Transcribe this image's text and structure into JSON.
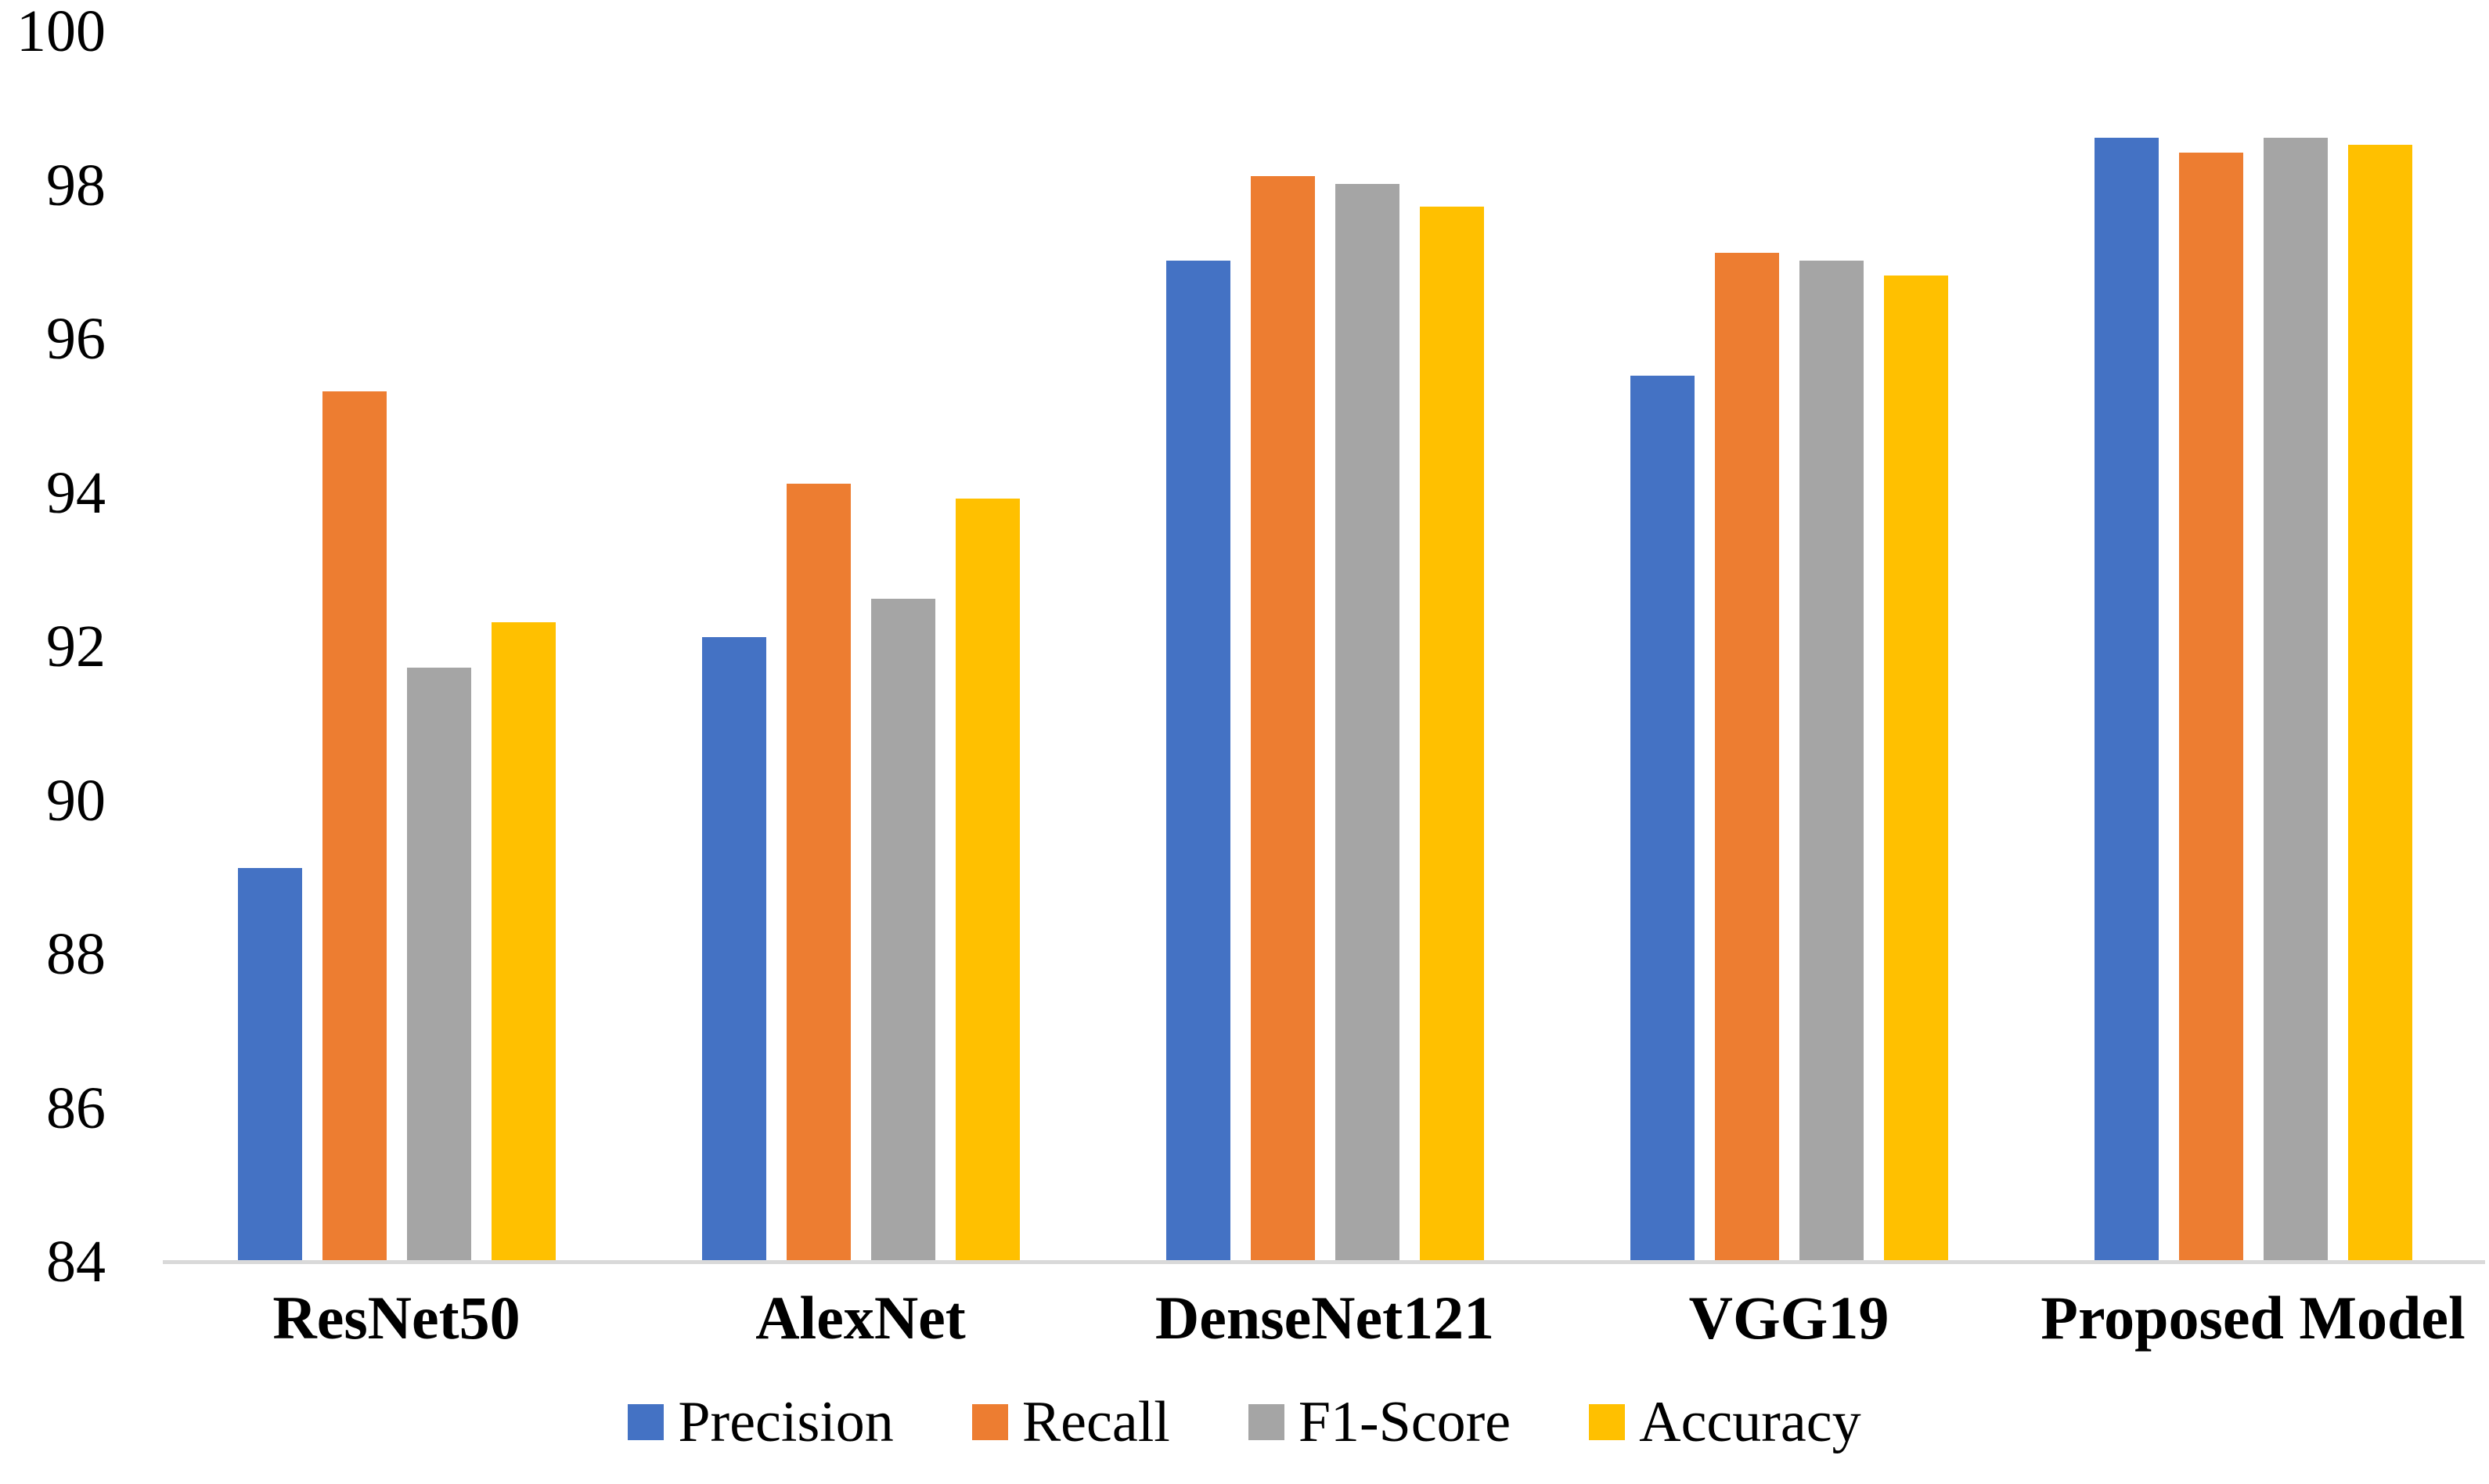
{
  "chart_data": {
    "type": "bar",
    "title": "",
    "xlabel": "",
    "ylabel": "",
    "categories": [
      "ResNet50",
      "AlexNet",
      "DenseNet121",
      "VGG19",
      "Proposed Model"
    ],
    "series": [
      {
        "name": "Precision",
        "color": "#4472C4",
        "values": [
          89.1,
          92.1,
          97.0,
          95.5,
          98.6
        ]
      },
      {
        "name": "Recall",
        "color": "#ED7D31",
        "values": [
          95.3,
          94.1,
          98.1,
          97.1,
          98.4
        ]
      },
      {
        "name": "F1-Score",
        "color": "#A5A5A5",
        "values": [
          91.7,
          92.6,
          98.0,
          97.0,
          98.6
        ]
      },
      {
        "name": "Accuracy",
        "color": "#FFC000",
        "values": [
          92.3,
          93.9,
          97.7,
          96.8,
          98.5
        ]
      }
    ],
    "ylim": [
      84,
      100
    ],
    "ytick_step": 2,
    "ytick_labels": [
      "84",
      "86",
      "88",
      "90",
      "92",
      "94",
      "96",
      "98",
      "100"
    ],
    "grid": false,
    "legend_position": "bottom",
    "axis_line_color": "#D9D9D9",
    "text_color": "#000000",
    "background_color": "#FFFFFF"
  }
}
